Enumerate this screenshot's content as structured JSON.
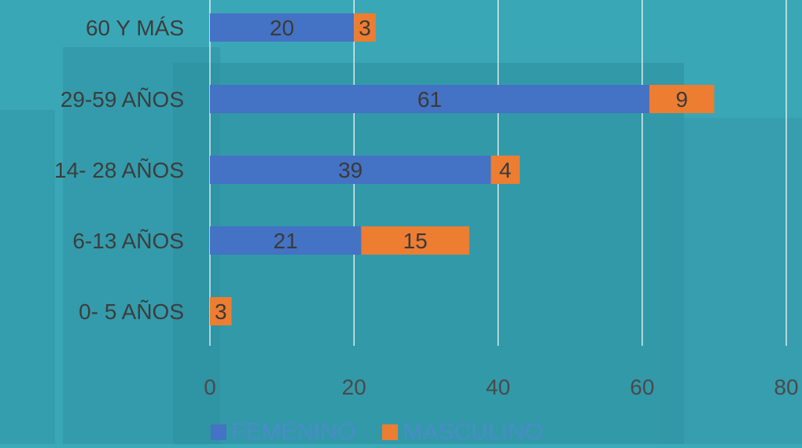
{
  "colors": {
    "femenino": "#4472c4",
    "masculino": "#ed7d31",
    "gridline": "#ffffff"
  },
  "legend": {
    "femenino_label": "FEMENINO",
    "masculino_label": "MASCULINO"
  },
  "chart_data": {
    "type": "bar",
    "orientation": "horizontal",
    "stacked": true,
    "categories": [
      "60 Y MÁS",
      "29-59 AÑOS",
      "14- 28 AÑOS",
      "6-13 AÑOS",
      "0- 5 AÑOS"
    ],
    "series": [
      {
        "name": "FEMENINO",
        "values": [
          20,
          61,
          39,
          21,
          0
        ]
      },
      {
        "name": "MASCULINO",
        "values": [
          3,
          9,
          4,
          15,
          3
        ]
      }
    ],
    "xlim": [
      0,
      80
    ],
    "xticks": [
      0,
      20,
      40,
      60,
      80
    ],
    "grid": true,
    "legend_position": "bottom"
  }
}
